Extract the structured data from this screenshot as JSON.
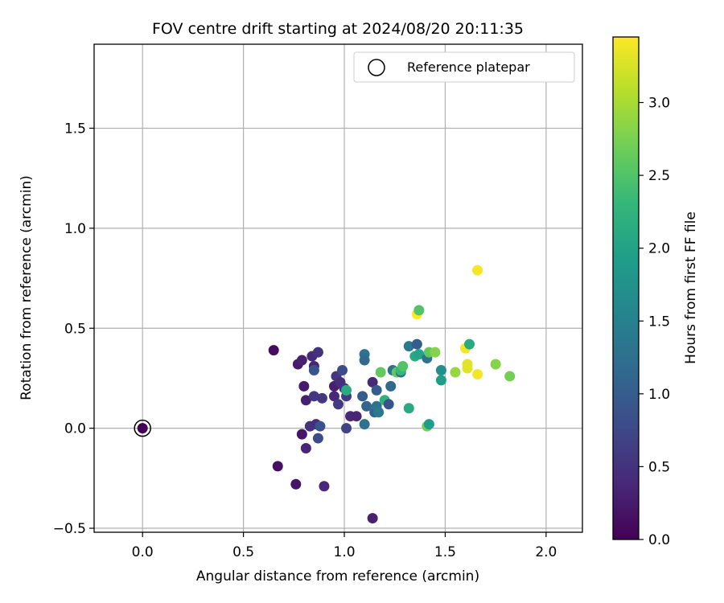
{
  "chart_data": {
    "type": "scatter",
    "title": "FOV centre drift starting at 2024/08/20 20:11:35",
    "xlabel": "Angular distance from reference (arcmin)",
    "ylabel": "Rotation from reference (arcmin)",
    "xlim": [
      -0.24,
      2.18
    ],
    "ylim": [
      -0.52,
      1.92
    ],
    "x_ticks": [
      0.0,
      0.5,
      1.0,
      1.5,
      2.0
    ],
    "x_tick_labels": [
      "0.0",
      "0.5",
      "1.0",
      "1.5",
      "2.0"
    ],
    "y_ticks": [
      -0.5,
      0.0,
      0.5,
      1.0,
      1.5
    ],
    "y_tick_labels": [
      "−0.5",
      "0.0",
      "0.5",
      "1.0",
      "1.5"
    ],
    "grid": true,
    "legend": {
      "position": "top-right",
      "entries": [
        "Reference platepar"
      ]
    },
    "colorbar": {
      "label": "Hours from first FF file",
      "colormap": "viridis",
      "range": [
        0.0,
        3.45
      ],
      "ticks": [
        0.0,
        0.5,
        1.0,
        1.5,
        2.0,
        2.5,
        3.0
      ],
      "tick_labels": [
        "0.0",
        "0.5",
        "1.0",
        "1.5",
        "2.0",
        "2.5",
        "3.0"
      ]
    },
    "reference": {
      "x": 0.0,
      "y": 0.0
    },
    "points": [
      {
        "x": 0.0,
        "y": 0.0,
        "c": 0.0
      },
      {
        "x": 0.65,
        "y": 0.39,
        "c": 0.1
      },
      {
        "x": 0.67,
        "y": -0.19,
        "c": 0.15
      },
      {
        "x": 0.76,
        "y": -0.28,
        "c": 0.2
      },
      {
        "x": 0.77,
        "y": 0.32,
        "c": 0.25
      },
      {
        "x": 0.79,
        "y": 0.34,
        "c": 0.3
      },
      {
        "x": 0.79,
        "y": -0.03,
        "c": 0.2
      },
      {
        "x": 0.8,
        "y": 0.21,
        "c": 0.25
      },
      {
        "x": 0.81,
        "y": 0.14,
        "c": 0.3
      },
      {
        "x": 0.81,
        "y": -0.1,
        "c": 0.35
      },
      {
        "x": 0.83,
        "y": 0.01,
        "c": 0.5
      },
      {
        "x": 0.84,
        "y": 0.36,
        "c": 0.4
      },
      {
        "x": 0.85,
        "y": 0.31,
        "c": 0.35
      },
      {
        "x": 0.85,
        "y": 0.16,
        "c": 0.55
      },
      {
        "x": 0.85,
        "y": 0.29,
        "c": 0.9
      },
      {
        "x": 0.86,
        "y": 0.02,
        "c": 0.45
      },
      {
        "x": 0.87,
        "y": 0.38,
        "c": 0.5
      },
      {
        "x": 0.87,
        "y": -0.05,
        "c": 0.8
      },
      {
        "x": 0.88,
        "y": 0.01,
        "c": 0.9
      },
      {
        "x": 0.89,
        "y": 0.15,
        "c": 0.55
      },
      {
        "x": 0.9,
        "y": -0.29,
        "c": 0.4
      },
      {
        "x": 0.95,
        "y": 0.21,
        "c": 0.3
      },
      {
        "x": 0.95,
        "y": 0.16,
        "c": 0.4
      },
      {
        "x": 0.96,
        "y": 0.26,
        "c": 0.55
      },
      {
        "x": 0.97,
        "y": 0.12,
        "c": 0.6
      },
      {
        "x": 0.98,
        "y": 0.23,
        "c": 0.45
      },
      {
        "x": 0.99,
        "y": 0.29,
        "c": 0.8
      },
      {
        "x": 1.0,
        "y": 0.2,
        "c": 0.5
      },
      {
        "x": 1.01,
        "y": 0.16,
        "c": 0.6
      },
      {
        "x": 1.01,
        "y": 0.0,
        "c": 0.7
      },
      {
        "x": 1.01,
        "y": 0.19,
        "c": 2.1
      },
      {
        "x": 1.03,
        "y": 0.06,
        "c": 0.4
      },
      {
        "x": 1.06,
        "y": 0.06,
        "c": 0.35
      },
      {
        "x": 1.09,
        "y": 0.16,
        "c": 1.0
      },
      {
        "x": 1.1,
        "y": 0.37,
        "c": 1.3
      },
      {
        "x": 1.1,
        "y": 0.34,
        "c": 1.2
      },
      {
        "x": 1.1,
        "y": 0.02,
        "c": 1.3
      },
      {
        "x": 1.11,
        "y": 0.11,
        "c": 1.1
      },
      {
        "x": 1.14,
        "y": 0.23,
        "c": 0.4
      },
      {
        "x": 1.14,
        "y": -0.45,
        "c": 0.3
      },
      {
        "x": 1.15,
        "y": 0.08,
        "c": 1.1
      },
      {
        "x": 1.16,
        "y": 0.11,
        "c": 1.3
      },
      {
        "x": 1.16,
        "y": 0.19,
        "c": 1.0
      },
      {
        "x": 1.17,
        "y": 0.08,
        "c": 1.4
      },
      {
        "x": 1.18,
        "y": 0.28,
        "c": 2.6
      },
      {
        "x": 1.2,
        "y": 0.14,
        "c": 2.2
      },
      {
        "x": 1.22,
        "y": 0.12,
        "c": 0.9
      },
      {
        "x": 1.23,
        "y": 0.21,
        "c": 1.2
      },
      {
        "x": 1.24,
        "y": 0.29,
        "c": 1.3
      },
      {
        "x": 1.26,
        "y": 0.28,
        "c": 2.6
      },
      {
        "x": 1.28,
        "y": 0.28,
        "c": 1.3
      },
      {
        "x": 1.28,
        "y": 0.29,
        "c": 2.3
      },
      {
        "x": 1.29,
        "y": 0.31,
        "c": 2.5
      },
      {
        "x": 1.32,
        "y": 0.41,
        "c": 1.4
      },
      {
        "x": 1.32,
        "y": 0.1,
        "c": 2.1
      },
      {
        "x": 1.35,
        "y": 0.36,
        "c": 2.1
      },
      {
        "x": 1.36,
        "y": 0.42,
        "c": 1.0
      },
      {
        "x": 1.36,
        "y": 0.57,
        "c": 3.45
      },
      {
        "x": 1.37,
        "y": 0.59,
        "c": 2.5
      },
      {
        "x": 1.37,
        "y": 0.37,
        "c": 2.0
      },
      {
        "x": 1.41,
        "y": 0.35,
        "c": 1.3
      },
      {
        "x": 1.41,
        "y": 0.01,
        "c": 2.7
      },
      {
        "x": 1.42,
        "y": 0.02,
        "c": 1.9
      },
      {
        "x": 1.42,
        "y": 0.38,
        "c": 2.6
      },
      {
        "x": 1.45,
        "y": 0.38,
        "c": 2.8
      },
      {
        "x": 1.48,
        "y": 0.29,
        "c": 1.7
      },
      {
        "x": 1.48,
        "y": 0.24,
        "c": 1.9
      },
      {
        "x": 1.55,
        "y": 0.28,
        "c": 2.9
      },
      {
        "x": 1.6,
        "y": 0.4,
        "c": 3.4
      },
      {
        "x": 1.61,
        "y": 0.32,
        "c": 3.3
      },
      {
        "x": 1.61,
        "y": 0.3,
        "c": 3.3
      },
      {
        "x": 1.62,
        "y": 0.42,
        "c": 2.1
      },
      {
        "x": 1.66,
        "y": 0.27,
        "c": 3.4
      },
      {
        "x": 1.66,
        "y": 0.79,
        "c": 3.4
      },
      {
        "x": 1.75,
        "y": 0.32,
        "c": 2.8
      },
      {
        "x": 1.82,
        "y": 0.26,
        "c": 2.7
      }
    ]
  }
}
